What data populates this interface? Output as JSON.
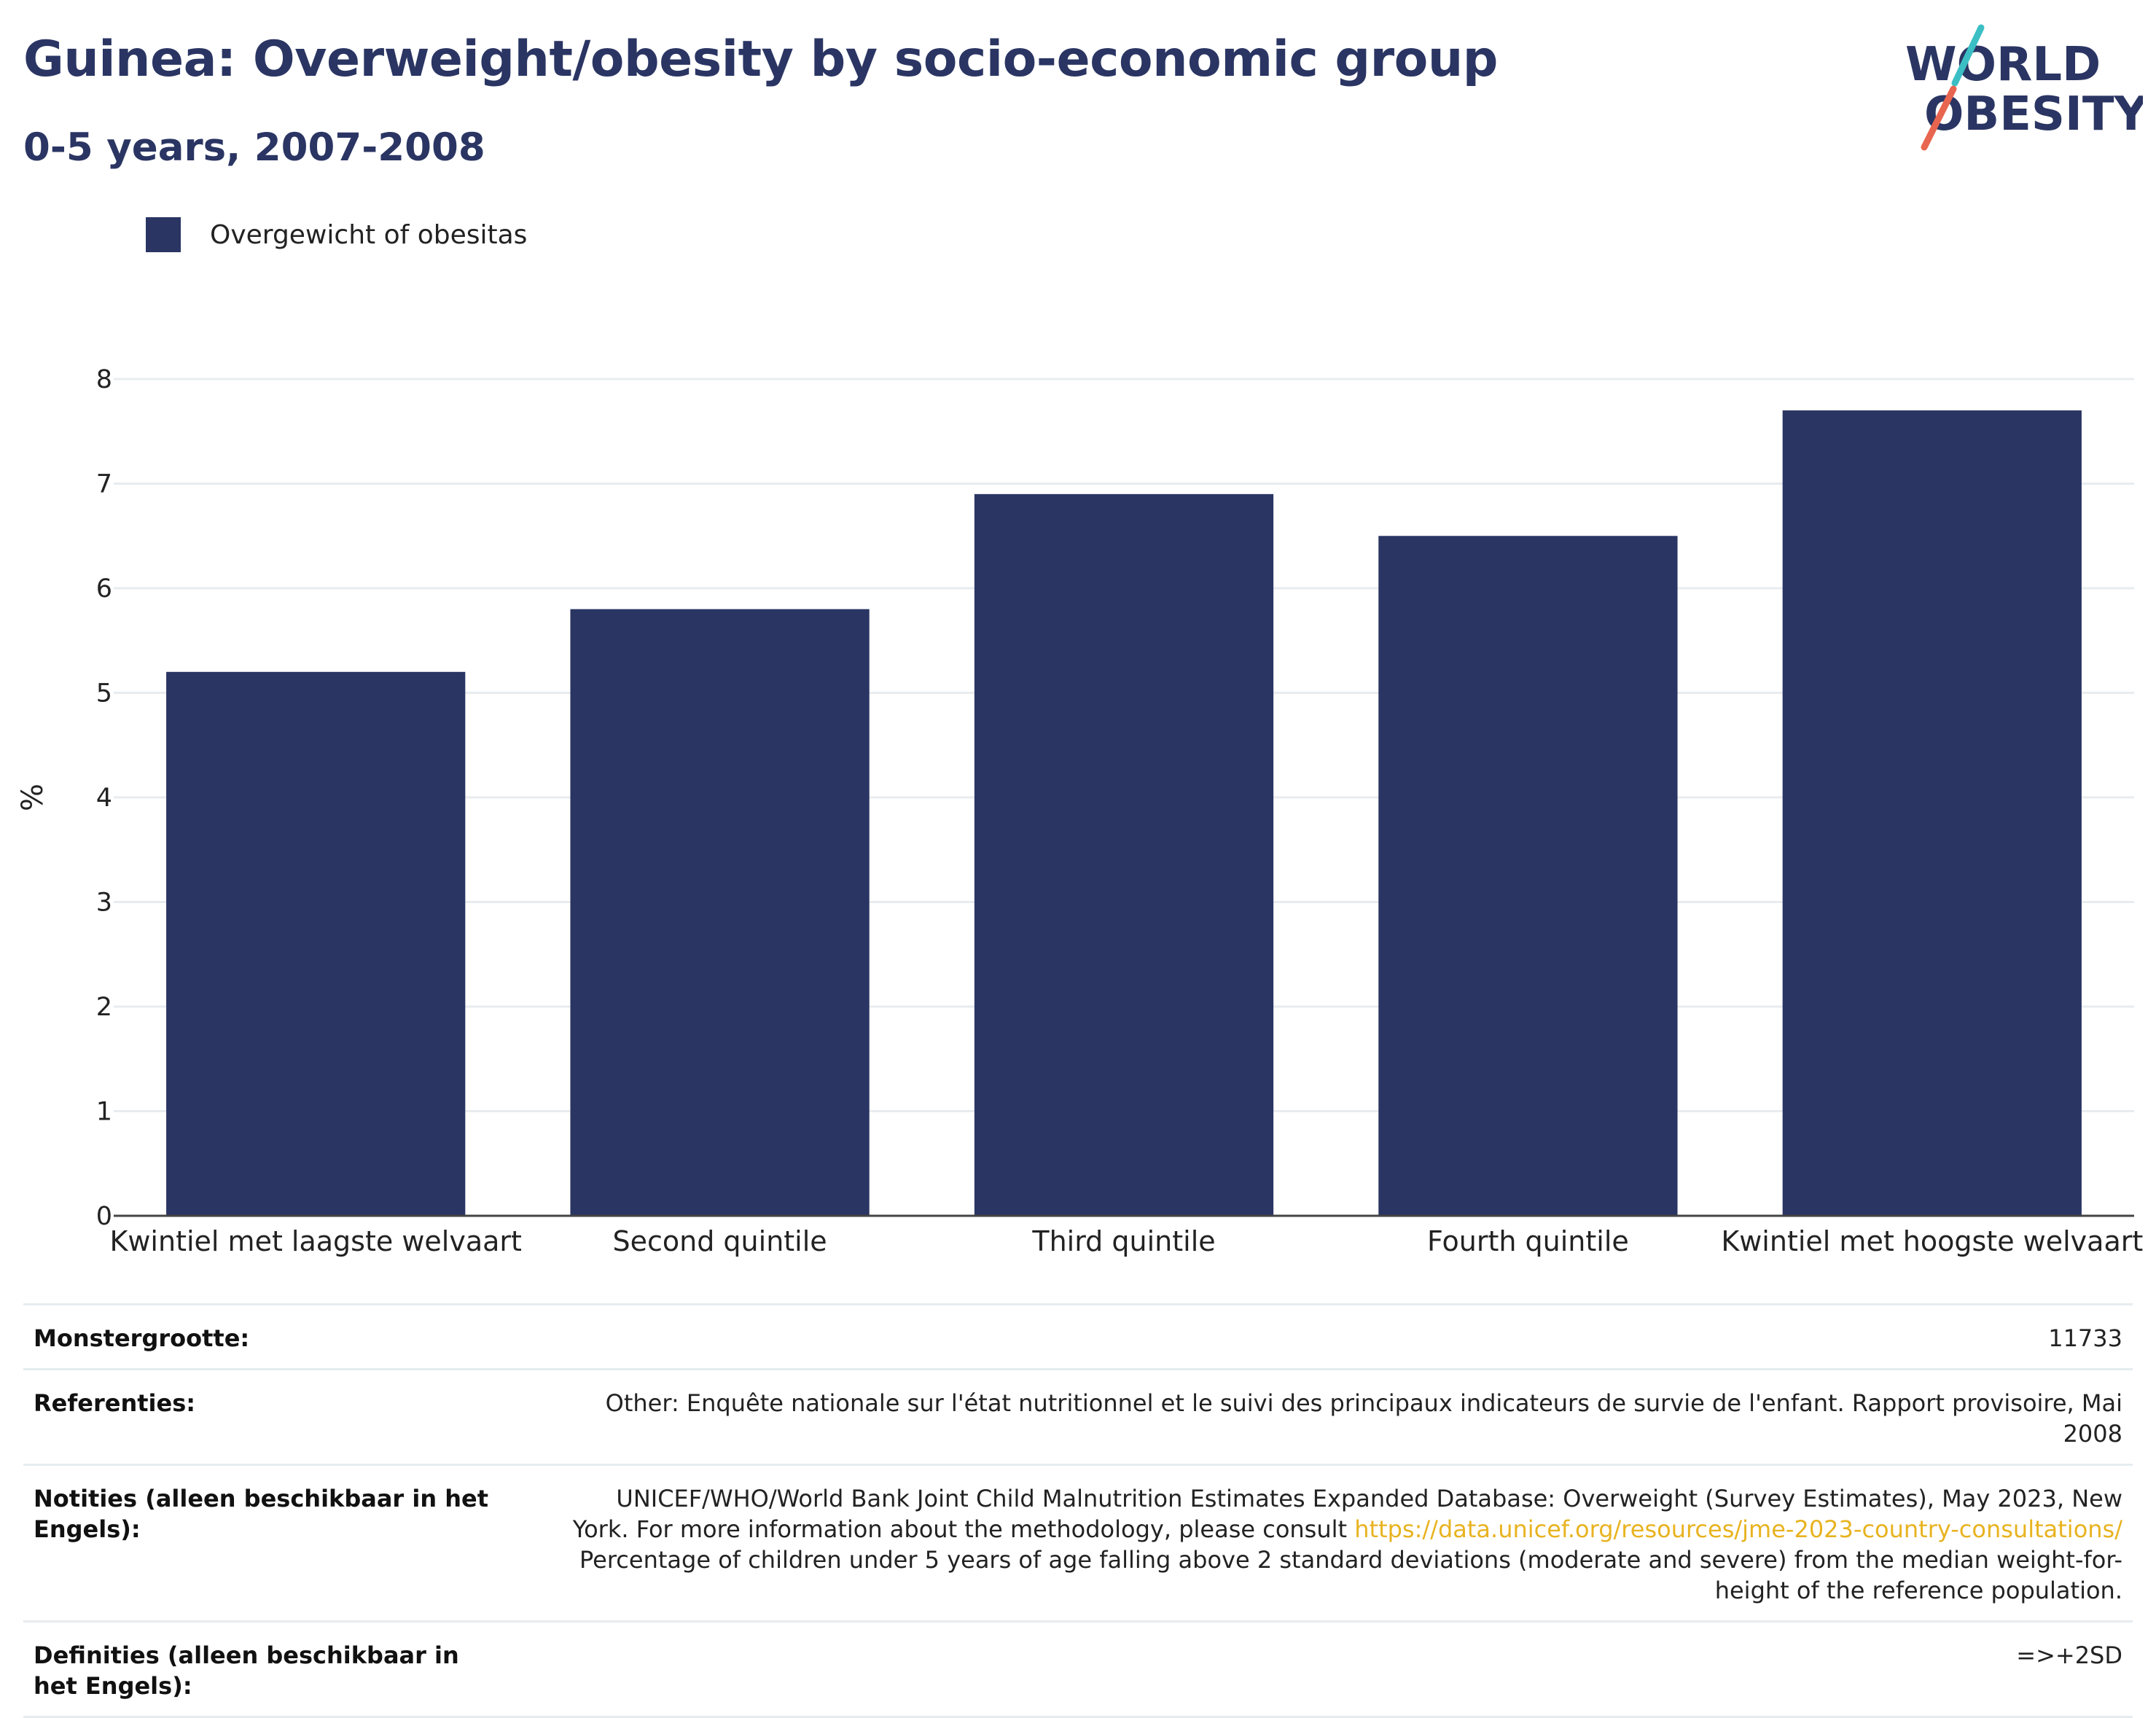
{
  "title": "Guinea: Overweight/obesity by socio-economic group",
  "subtitle": "0-5 years, 2007-2008",
  "logo": {
    "line1": "WORLD",
    "line2": "OBESITY"
  },
  "colors": {
    "bar": "#2a3563",
    "accent_teal": "#3bbfc4",
    "accent_red": "#e8654f",
    "link": "#e8b320",
    "grid": "#e8ecef"
  },
  "chart_data": {
    "type": "bar",
    "categories": [
      "Kwintiel met laagste welvaart",
      "Second quintile",
      "Third quintile",
      "Fourth quintile",
      "Kwintiel met hoogste welvaart"
    ],
    "series": [
      {
        "name": "Overgewicht of obesitas",
        "values": [
          5.2,
          5.8,
          6.9,
          6.5,
          7.7
        ]
      }
    ],
    "ylabel": "%",
    "xlabel": "",
    "ylim": [
      0,
      8
    ],
    "yticks": [
      0,
      1,
      2,
      3,
      4,
      5,
      6,
      7,
      8
    ],
    "grid": true,
    "legend": "top-left"
  },
  "meta": {
    "sample_key": "Monstergrootte:",
    "sample_val": "11733",
    "refs_key": "Referenties:",
    "refs_val": "Other: Enquête nationale sur l'état nutritionnel et le suivi des principaux indicateurs de survie de l'enfant. Rapport provisoire, Mai 2008",
    "notes_key": "Notities (alleen beschikbaar in het Engels):",
    "notes_val_1": "UNICEF/WHO/World Bank Joint Child Malnutrition Estimates Expanded Database: Overweight (Survey Estimates), May 2023, New York. For more information about the methodology, please consult",
    "notes_link": "https://data.unicef.org/resources/jme-2023-country-consultations/",
    "notes_val_2": "Percentage of children under 5 years of age falling above 2 standard deviations (moderate and severe) from the median weight-for-height of the reference population.",
    "defs_key": "Definities (alleen beschikbaar in het Engels):",
    "defs_val": "=>+2SD"
  }
}
